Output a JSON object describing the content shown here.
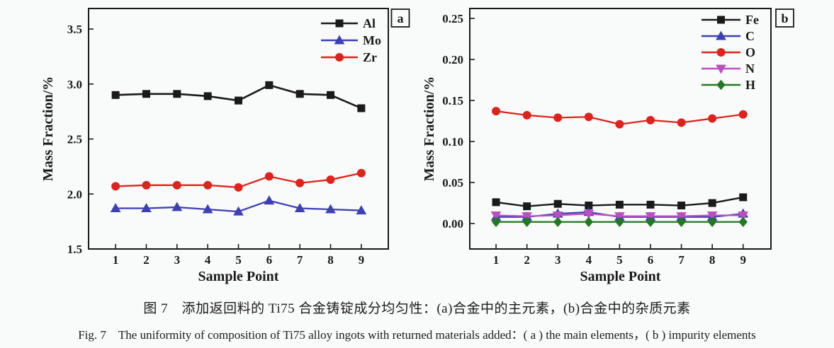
{
  "figure": {
    "background": "#f9fafa",
    "text_color": "#1a1a1a"
  },
  "captions": {
    "chinese": "图 7　添加返回料的 Ti75 合金铸锭成分均匀性：(a)合金中的主元素，(b)合金中的杂质元素",
    "english": "Fig. 7　The uniformity of composition of Ti75 alloy ingots with returned materials added：( a ) the main elements，( b ) impurity elements"
  },
  "chart_data": [
    {
      "type": "line",
      "panel_label": "a",
      "title": "",
      "xlabel": "Sample Point",
      "ylabel": "Mass Fraction/%",
      "grid": false,
      "legend_position": "top-right-inside",
      "x": [
        1,
        2,
        3,
        4,
        5,
        6,
        7,
        8,
        9
      ],
      "xticks": [
        1,
        2,
        3,
        4,
        5,
        6,
        7,
        8,
        9
      ],
      "xtick_labels": [
        "1",
        "2",
        "3",
        "4",
        "5",
        "6",
        "7",
        "8",
        "9"
      ],
      "xlim": [
        0.12,
        9.88
      ],
      "ylim": [
        1.5,
        3.687
      ],
      "yticks": [
        1.5,
        2.0,
        2.5,
        3.0,
        3.5
      ],
      "ytick_labels": [
        "1.5",
        "2.0",
        "2.5",
        "3.0",
        "3.5"
      ],
      "series": [
        {
          "name": "Al",
          "color": "#1a1a1a",
          "marker": "square",
          "lw": 2.6,
          "values": [
            2.9,
            2.91,
            2.91,
            2.89,
            2.85,
            2.99,
            2.91,
            2.9,
            2.78
          ]
        },
        {
          "name": "Mo",
          "color": "#3c40b5",
          "marker": "triangle-up",
          "lw": 2.3,
          "values": [
            1.87,
            1.87,
            1.88,
            1.86,
            1.84,
            1.94,
            1.87,
            1.86,
            1.85
          ]
        },
        {
          "name": "Zr",
          "color": "#df231c",
          "marker": "circle",
          "lw": 2.3,
          "values": [
            2.07,
            2.08,
            2.08,
            2.08,
            2.06,
            2.16,
            2.1,
            2.13,
            2.19
          ]
        }
      ]
    },
    {
      "type": "line",
      "panel_label": "b",
      "title": "",
      "xlabel": "Sample Point",
      "ylabel": "Mass Fraction/%",
      "grid": false,
      "legend_position": "top-right-inside",
      "x": [
        1,
        2,
        3,
        4,
        5,
        6,
        7,
        8,
        9
      ],
      "xticks": [
        1,
        2,
        3,
        4,
        5,
        6,
        7,
        8,
        9
      ],
      "xtick_labels": [
        "1",
        "2",
        "3",
        "4",
        "5",
        "6",
        "7",
        "8",
        "9"
      ],
      "xlim": [
        0.15,
        9.9
      ],
      "ylim": [
        -0.031,
        0.2621
      ],
      "yticks": [
        0.0,
        0.05,
        0.1,
        0.15,
        0.2,
        0.25
      ],
      "ytick_labels": [
        "0.00",
        "0.05",
        "0.10",
        "0.15",
        "0.20",
        "0.25"
      ],
      "series": [
        {
          "name": "Fe",
          "color": "#1a1a1a",
          "marker": "square",
          "lw": 2.4,
          "values": [
            0.026,
            0.021,
            0.024,
            0.022,
            0.023,
            0.023,
            0.022,
            0.025,
            0.032
          ]
        },
        {
          "name": "C",
          "color": "#3c40b5",
          "marker": "triangle-up",
          "lw": 2.2,
          "values": [
            0.008,
            0.008,
            0.012,
            0.014,
            0.008,
            0.008,
            0.008,
            0.008,
            0.012
          ]
        },
        {
          "name": "O",
          "color": "#df231c",
          "marker": "circle",
          "lw": 2.3,
          "values": [
            0.137,
            0.132,
            0.129,
            0.13,
            0.121,
            0.126,
            0.123,
            0.128,
            0.133
          ]
        },
        {
          "name": "N",
          "color": "#bb4fc0",
          "marker": "triangle-down",
          "lw": 2.2,
          "values": [
            0.01,
            0.009,
            0.01,
            0.012,
            0.009,
            0.009,
            0.009,
            0.01,
            0.01
          ]
        },
        {
          "name": "H",
          "color": "#217a21",
          "marker": "diamond",
          "lw": 2.2,
          "values": [
            0.002,
            0.002,
            0.002,
            0.002,
            0.002,
            0.002,
            0.002,
            0.002,
            0.002
          ]
        }
      ]
    }
  ]
}
